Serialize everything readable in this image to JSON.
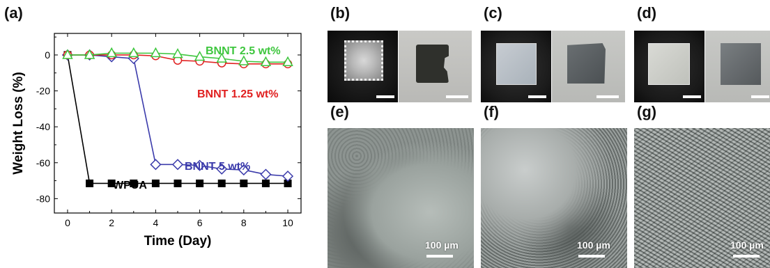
{
  "panel_labels": {
    "a": "(a)",
    "b": "(b)",
    "c": "(c)",
    "d": "(d)",
    "e": "(e)",
    "f": "(f)",
    "g": "(g)"
  },
  "micrographs": {
    "scale_text": "100 µm"
  },
  "colors": {
    "WPUA": "#000000",
    "BNNT 5 wt%": "#3b3bab",
    "BNNT 1.25 wt%": "#e02020",
    "BNNT 2.5 wt%": "#3ec63e"
  },
  "chart_data": {
    "type": "line",
    "xlabel": "Time (Day)",
    "ylabel": "Weight Loss (%)",
    "xlim": [
      -0.6,
      10.6
    ],
    "ylim": [
      -88,
      12
    ],
    "xticks": [
      0,
      2,
      4,
      6,
      8,
      10
    ],
    "yticks": [
      0,
      -20,
      -40,
      -60,
      -80
    ],
    "series": [
      {
        "name": "BNNT 2.5 wt%",
        "marker": "triangle",
        "label_text": "BNNT 2.5 wt%",
        "x": [
          0,
          1,
          2,
          3,
          4,
          5,
          6,
          7,
          8,
          9,
          10
        ],
        "y": [
          0,
          0,
          1,
          1,
          1,
          0.5,
          -1,
          -2,
          -3.5,
          -4,
          -4
        ]
      },
      {
        "name": "BNNT 1.25 wt%",
        "marker": "circle",
        "label_text": "BNNT 1.25 wt%",
        "x": [
          0,
          1,
          2,
          3,
          4,
          5,
          6,
          7,
          8,
          9,
          10
        ],
        "y": [
          0,
          0,
          0,
          0,
          -0.5,
          -3,
          -3.5,
          -4.5,
          -5,
          -5,
          -5
        ]
      },
      {
        "name": "BNNT 5 wt%",
        "marker": "diamond",
        "label_text": "BNNT 5 wt%",
        "x": [
          0,
          1,
          2,
          3,
          4,
          5,
          6,
          7,
          8,
          9,
          10
        ],
        "y": [
          0,
          0,
          -1,
          -2,
          -61,
          -61,
          -61.5,
          -63.5,
          -64,
          -66.5,
          -67.5
        ]
      },
      {
        "name": "WPUA",
        "marker": "square",
        "label_text": "WPUA",
        "x": [
          0,
          1,
          2,
          3,
          4,
          5,
          6,
          7,
          8,
          9,
          10
        ],
        "y": [
          0,
          -71.5,
          -71.5,
          -71.5,
          -71.5,
          -71.5,
          -71.5,
          -71.5,
          -71.5,
          -71.5,
          -71.5
        ]
      }
    ]
  }
}
